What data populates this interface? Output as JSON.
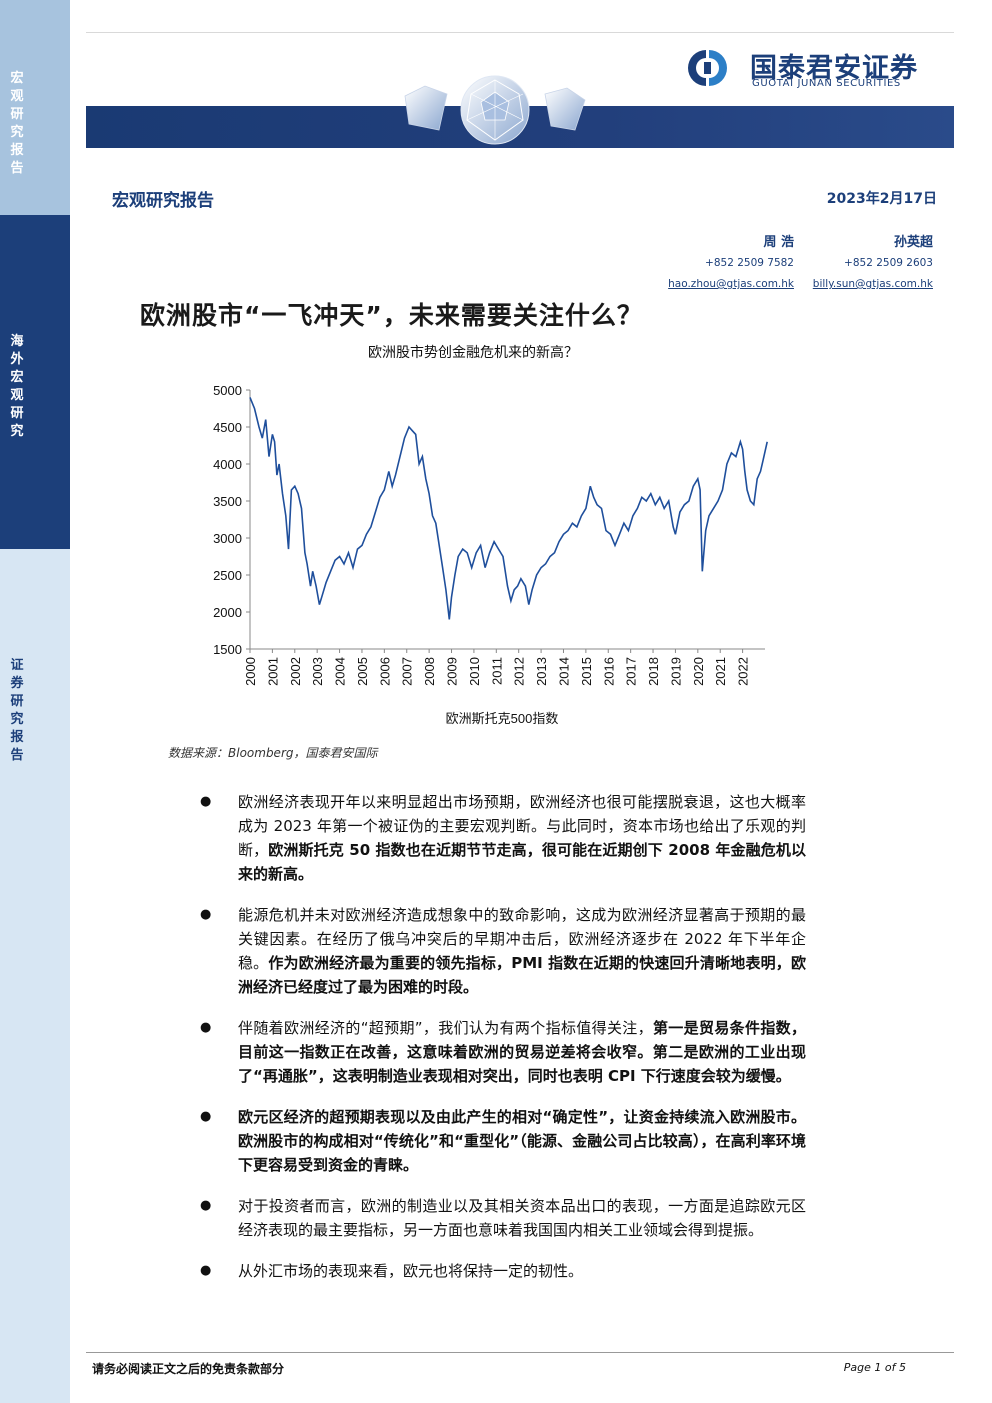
{
  "sidebar": {
    "seg1": "宏观研究报告",
    "seg2": "海外宏观研究",
    "seg3": "证券研究报告"
  },
  "brand": {
    "name_cn": "国泰君安证券",
    "name_en": "GUOTAI JUNAN SECURITIES",
    "color_primary": "#1c3f7a"
  },
  "header": {
    "report_type": "宏观研究报告",
    "date": "2023年2月17日"
  },
  "analysts": [
    {
      "name": "周 浩",
      "phone": "+852 2509 7582",
      "email": "hao.zhou@gtjas.com.hk"
    },
    {
      "name": "孙英超",
      "phone": "+852 2509 2603",
      "email": "billy.sun@gtjas.com.hk"
    }
  ],
  "title": "欧洲股市“一飞冲天”，未来需要关注什么？",
  "chart_data": {
    "type": "line",
    "title": "欧洲股市势创金融危机来的新高？",
    "xlabel": "欧洲斯托克500指数",
    "ylabel": "",
    "ylim": [
      1500,
      5000
    ],
    "yticks": [
      5000,
      4500,
      4000,
      3500,
      3000,
      2500,
      2000,
      1500
    ],
    "xlim": [
      2000,
      2023
    ],
    "xticks": [
      "2000",
      "2001",
      "2002",
      "2003",
      "2004",
      "2005",
      "2006",
      "2007",
      "2008",
      "2009",
      "2010",
      "2011",
      "2012",
      "2013",
      "2014",
      "2015",
      "2016",
      "2017",
      "2018",
      "2019",
      "2020",
      "2021",
      "2022"
    ],
    "line_color": "#1f4f9c",
    "series": [
      {
        "x": [
          2000.0,
          2000.2,
          2000.4,
          2000.55,
          2000.7,
          2000.85,
          2001.0,
          2001.1,
          2001.2,
          2001.3,
          2001.45,
          2001.6,
          2001.72,
          2001.85,
          2002.0,
          2002.15,
          2002.3,
          2002.45,
          2002.55,
          2002.7,
          2002.8,
          2002.95,
          2003.1,
          2003.2,
          2003.4,
          2003.6,
          2003.8,
          2004.0,
          2004.2,
          2004.4,
          2004.6,
          2004.8,
          2005.0,
          2005.2,
          2005.4,
          2005.6,
          2005.8,
          2006.0,
          2006.2,
          2006.35,
          2006.5,
          2006.7,
          2006.9,
          2007.1,
          2007.25,
          2007.4,
          2007.55,
          2007.7,
          2007.85,
          2008.0,
          2008.15,
          2008.3,
          2008.45,
          2008.6,
          2008.75,
          2008.9,
          2009.0,
          2009.15,
          2009.3,
          2009.5,
          2009.7,
          2009.9,
          2010.1,
          2010.3,
          2010.5,
          2010.7,
          2010.9,
          2011.1,
          2011.3,
          2011.5,
          2011.65,
          2011.8,
          2011.95,
          2012.1,
          2012.3,
          2012.45,
          2012.6,
          2012.8,
          2013.0,
          2013.2,
          2013.4,
          2013.6,
          2013.8,
          2014.0,
          2014.2,
          2014.4,
          2014.6,
          2014.8,
          2015.0,
          2015.2,
          2015.35,
          2015.5,
          2015.7,
          2015.9,
          2016.1,
          2016.3,
          2016.5,
          2016.7,
          2016.9,
          2017.1,
          2017.3,
          2017.5,
          2017.7,
          2017.9,
          2018.1,
          2018.3,
          2018.5,
          2018.7,
          2018.9,
          2019.0,
          2019.2,
          2019.4,
          2019.6,
          2019.8,
          2020.0,
          2020.1,
          2020.2,
          2020.35,
          2020.5,
          2020.7,
          2020.9,
          2021.1,
          2021.3,
          2021.5,
          2021.7,
          2021.9,
          2022.0,
          2022.1,
          2022.2,
          2022.35,
          2022.5,
          2022.65,
          2022.8,
          2022.95,
          2023.1
        ],
        "y": [
          4900,
          4750,
          4500,
          4350,
          4600,
          4100,
          4400,
          4300,
          3850,
          4000,
          3600,
          3300,
          2850,
          3650,
          3700,
          3600,
          3400,
          2800,
          2650,
          2350,
          2550,
          2350,
          2100,
          2200,
          2400,
          2550,
          2700,
          2750,
          2650,
          2800,
          2600,
          2850,
          2900,
          3050,
          3150,
          3350,
          3550,
          3650,
          3900,
          3700,
          3850,
          4100,
          4350,
          4500,
          4450,
          4400,
          4000,
          4100,
          3800,
          3600,
          3300,
          3200,
          2900,
          2600,
          2300,
          1900,
          2200,
          2500,
          2750,
          2850,
          2800,
          2600,
          2800,
          2900,
          2600,
          2800,
          2950,
          2850,
          2750,
          2350,
          2150,
          2300,
          2350,
          2450,
          2350,
          2100,
          2300,
          2500,
          2600,
          2650,
          2750,
          2800,
          2950,
          3050,
          3100,
          3200,
          3150,
          3300,
          3400,
          3700,
          3550,
          3450,
          3400,
          3100,
          3050,
          2900,
          3050,
          3200,
          3100,
          3300,
          3400,
          3550,
          3500,
          3600,
          3450,
          3550,
          3400,
          3500,
          3150,
          3050,
          3350,
          3450,
          3500,
          3700,
          3800,
          3650,
          2550,
          3100,
          3300,
          3400,
          3500,
          3650,
          4000,
          4150,
          4100,
          4300,
          4200,
          3900,
          3650,
          3500,
          3450,
          3800,
          3900,
          4100,
          4300
        ]
      }
    ]
  },
  "source": "数据来源：Bloomberg，国泰君安国际",
  "bullets": [
    {
      "text": "欧洲经济表现开年以来明显超出市场预期，欧洲经济也很可能摆脱衰退，这也大概率成为 2023 年第一个被证伪的主要宏观判断。与此同时，资本市场也给出了乐观的判断，",
      "bold": "欧洲斯托克 50 指数也在近期节节走高，很可能在近期创下 2008 年金融危机以来的新高。"
    },
    {
      "text": "能源危机并未对欧洲经济造成想象中的致命影响，这成为欧洲经济显著高于预期的最关键因素。在经历了俄乌冲突后的早期冲击后，欧洲经济逐步在 2022 年下半年企稳。",
      "bold": "作为欧洲经济最为重要的领先指标，PMI 指数在近期的快速回升清晰地表明，欧洲经济已经度过了最为困难的时段。"
    },
    {
      "text": "伴随着欧洲经济的“超预期”，我们认为有两个指标值得关注，",
      "bold": "第一是贸易条件指数，目前这一指数正在改善，这意味着欧洲的贸易逆差将会收窄。第二是欧洲的工业出现了“再通胀”，这表明制造业表现相对突出，同时也表明 CPI 下行速度会较为缓慢。"
    },
    {
      "text": "",
      "bold": "欧元区经济的超预期表现以及由此产生的相对“确定性”，让资金持续流入欧洲股市。欧洲股市的构成相对“传统化”和“重型化”（能源、金融公司占比较高），在高利率环境下更容易受到资金的青睐。"
    },
    {
      "text": "对于投资者而言，欧洲的制造业以及其相关资本品出口的表现，一方面是追踪欧元区经济表现的最主要指标，另一方面也意味着我国国内相关工业领域会得到提振。",
      "bold": ""
    },
    {
      "text": "从外汇市场的表现来看，欧元也将保持一定的韧性。",
      "bold": ""
    }
  ],
  "footer": {
    "disclaimer": "请务必阅读正文之后的免责条款部分",
    "page": "Page 1 of 5"
  }
}
